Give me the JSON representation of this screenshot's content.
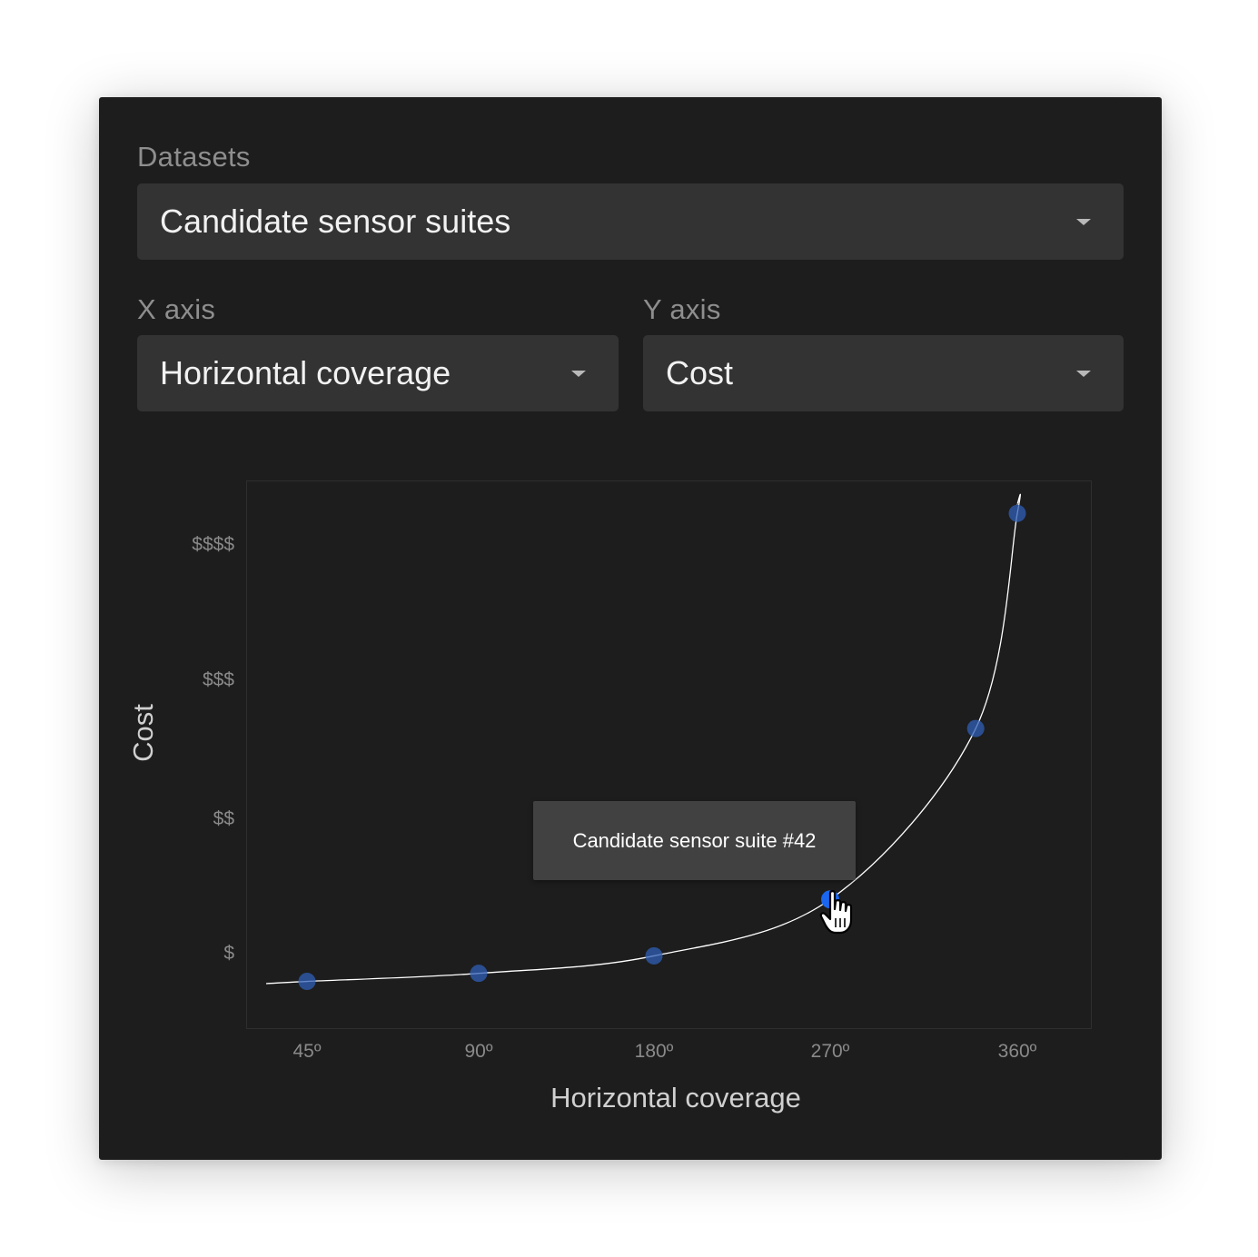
{
  "datasets": {
    "label": "Datasets",
    "selected": "Candidate sensor suites"
  },
  "x_axis": {
    "label": "X axis",
    "selected": "Horizontal coverage"
  },
  "y_axis": {
    "label": "Y axis",
    "selected": "Cost"
  },
  "tooltip": {
    "text": "Candidate sensor suite #42"
  },
  "cursor_icon": "pointer-hand-icon",
  "colors": {
    "panel": "#1d1d1d",
    "select": "#333333",
    "point": "#2f5fb5",
    "point_active": "#1a66f0",
    "curve": "#ffffff"
  },
  "chart_data": {
    "type": "scatter",
    "xlabel": "Horizontal coverage",
    "ylabel": "Cost",
    "x_ticks": [
      {
        "value": 45,
        "label": "45º"
      },
      {
        "value": 90,
        "label": "90º"
      },
      {
        "value": 180,
        "label": "180º"
      },
      {
        "value": 270,
        "label": "270º"
      },
      {
        "value": 360,
        "label": "360º"
      }
    ],
    "y_ticks": [
      {
        "value": 1,
        "label": "$"
      },
      {
        "value": 2,
        "label": "$$"
      },
      {
        "value": 3,
        "label": "$$$"
      },
      {
        "value": 4,
        "label": "$$$$"
      }
    ],
    "points": [
      {
        "x": 45,
        "y": 0.78
      },
      {
        "x": 90,
        "y": 0.84
      },
      {
        "x": 180,
        "y": 0.97
      },
      {
        "x": 270,
        "y": 1.39,
        "highlighted": true
      },
      {
        "x": 340,
        "y": 2.64
      },
      {
        "x": 360,
        "y": 4.22
      }
    ],
    "trend_line": true,
    "grid": false
  }
}
